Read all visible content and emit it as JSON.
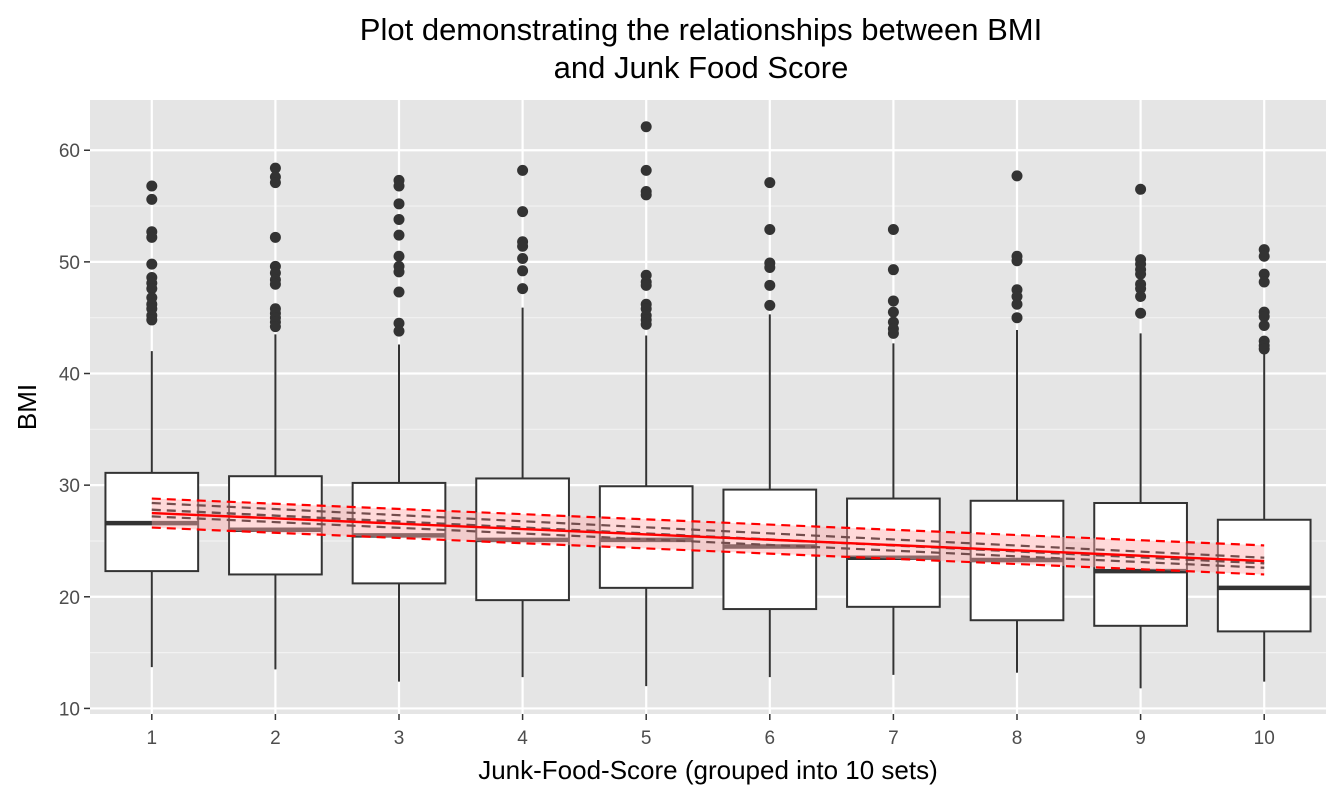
{
  "chart_data": {
    "type": "boxplot",
    "title": [
      "Plot demonstrating the relationships between BMI",
      "and Junk Food Score"
    ],
    "xlabel": "Junk-Food-Score (grouped into 10 sets)",
    "ylabel": "BMI",
    "categories": [
      "1",
      "2",
      "3",
      "4",
      "5",
      "6",
      "7",
      "8",
      "9",
      "10"
    ],
    "ylim": [
      9.5,
      64.5
    ],
    "yticks": [
      10,
      20,
      30,
      40,
      50,
      60
    ],
    "grid": true,
    "boxes": [
      {
        "category": "1",
        "low": 13.7,
        "q1": 22.3,
        "median": 26.6,
        "q3": 31.1,
        "high": 42.0,
        "outliers": [
          56.8,
          55.6,
          52.7,
          52.2,
          49.8,
          48.6,
          48.1,
          47.6,
          46.8,
          46.2,
          45.8,
          45.2,
          44.8
        ]
      },
      {
        "category": "2",
        "low": 13.5,
        "q1": 22.0,
        "median": 26.0,
        "q3": 30.8,
        "high": 43.5,
        "outliers": [
          58.4,
          57.6,
          57.1,
          52.2,
          49.6,
          49.0,
          48.4,
          48.0,
          45.8,
          45.4,
          45.0,
          44.6,
          44.2
        ]
      },
      {
        "category": "3",
        "low": 12.4,
        "q1": 21.2,
        "median": 25.5,
        "q3": 30.2,
        "high": 42.6,
        "outliers": [
          57.3,
          56.8,
          55.2,
          53.8,
          52.4,
          50.5,
          49.6,
          49.1,
          47.3,
          44.5,
          43.8
        ]
      },
      {
        "category": "4",
        "low": 12.8,
        "q1": 19.7,
        "median": 25.1,
        "q3": 30.6,
        "high": 45.9,
        "outliers": [
          58.2,
          54.5,
          51.8,
          51.4,
          50.3,
          49.2,
          47.6
        ]
      },
      {
        "category": "5",
        "low": 12.0,
        "q1": 20.8,
        "median": 25.1,
        "q3": 29.9,
        "high": 43.4,
        "outliers": [
          62.1,
          58.2,
          56.3,
          56.0,
          48.8,
          48.2,
          47.9,
          46.2,
          45.8,
          45.2,
          44.8,
          44.4
        ]
      },
      {
        "category": "6",
        "low": 12.8,
        "q1": 18.9,
        "median": 24.5,
        "q3": 29.6,
        "high": 45.3,
        "outliers": [
          57.1,
          52.9,
          49.9,
          49.5,
          47.9,
          46.1
        ]
      },
      {
        "category": "7",
        "low": 13.0,
        "q1": 19.1,
        "median": 23.5,
        "q3": 28.8,
        "high": 42.7,
        "outliers": [
          52.9,
          49.3,
          46.5,
          45.5,
          44.6,
          44.0,
          43.6
        ]
      },
      {
        "category": "8",
        "low": 13.2,
        "q1": 17.9,
        "median": 23.3,
        "q3": 28.6,
        "high": 43.9,
        "outliers": [
          57.7,
          50.5,
          50.1,
          47.5,
          46.9,
          46.2,
          45.0
        ]
      },
      {
        "category": "9",
        "low": 11.8,
        "q1": 17.4,
        "median": 22.3,
        "q3": 28.4,
        "high": 43.6,
        "outliers": [
          56.5,
          50.2,
          49.8,
          49.3,
          48.9,
          48.0,
          47.6,
          46.9,
          45.4
        ]
      },
      {
        "category": "10",
        "low": 12.4,
        "q1": 16.9,
        "median": 20.8,
        "q3": 26.9,
        "high": 42.2,
        "outliers": [
          51.1,
          50.5,
          48.9,
          48.2,
          45.5,
          45.1,
          44.3,
          42.9,
          42.5,
          42.2
        ]
      }
    ],
    "series": [
      {
        "style": "dashed",
        "color": "#000000",
        "values": [
          27.8,
          23.0
        ],
        "lower": [
          27.2,
          22.6
        ],
        "upper": [
          28.4,
          23.5
        ]
      },
      {
        "style": "solid",
        "color": "#ff0000",
        "values": [
          27.5,
          23.2
        ],
        "lower": [
          26.2,
          22.0
        ],
        "upper": [
          28.8,
          24.6
        ],
        "band_color": "#ffaaaa"
      }
    ]
  }
}
